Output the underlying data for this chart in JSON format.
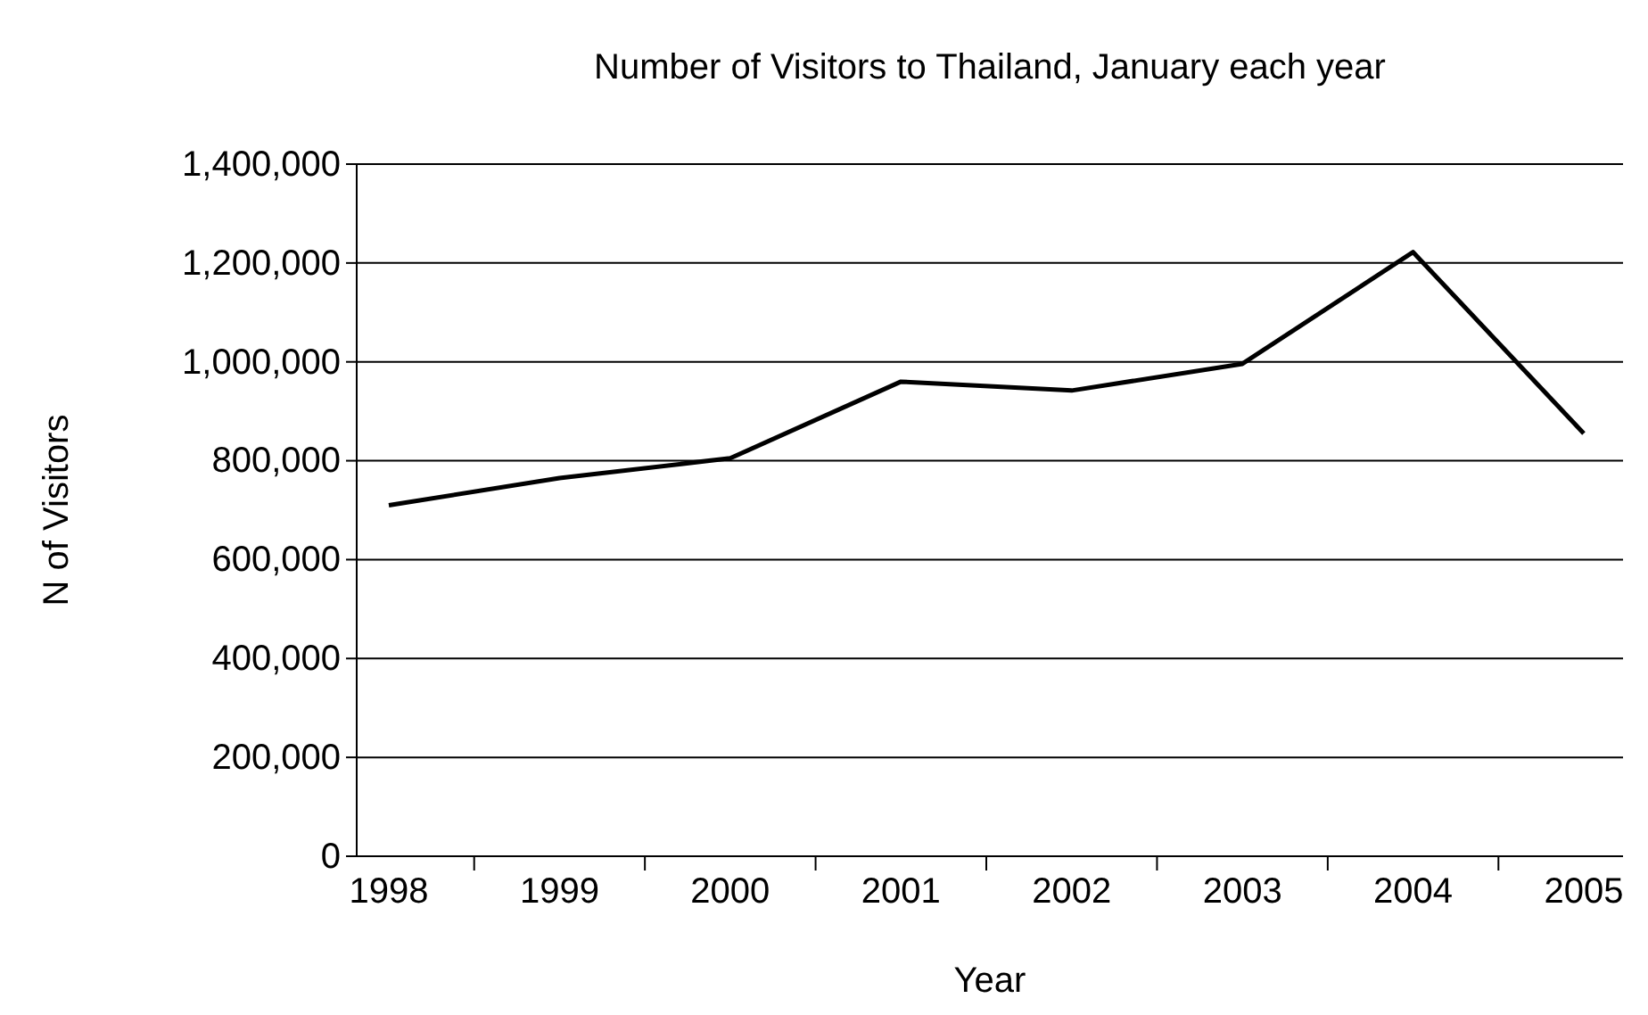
{
  "chart_data": {
    "type": "line",
    "title": "Number of Visitors to Thailand, January each year",
    "xlabel": "Year",
    "ylabel": "N of Visitors",
    "categories": [
      "1998",
      "1999",
      "2000",
      "2001",
      "2002",
      "2003",
      "2004",
      "2005"
    ],
    "series": [
      {
        "color": "#000000",
        "values": [
          710000,
          765000,
          805000,
          960000,
          942000,
          996000,
          1222000,
          855000
        ]
      }
    ],
    "ylim": [
      0,
      1400000
    ],
    "yticks": [
      {
        "value": 0,
        "label": "0"
      },
      {
        "value": 200000,
        "label": "200,000"
      },
      {
        "value": 400000,
        "label": "400,000"
      },
      {
        "value": 600000,
        "label": "600,000"
      },
      {
        "value": 800000,
        "label": "800,000"
      },
      {
        "value": 1000000,
        "label": "1,000,000"
      },
      {
        "value": 1200000,
        "label": "1,200,000"
      },
      {
        "value": 1400000,
        "label": "1,400,000"
      }
    ],
    "grid": "y",
    "marker": "none",
    "line_style": "solid"
  }
}
